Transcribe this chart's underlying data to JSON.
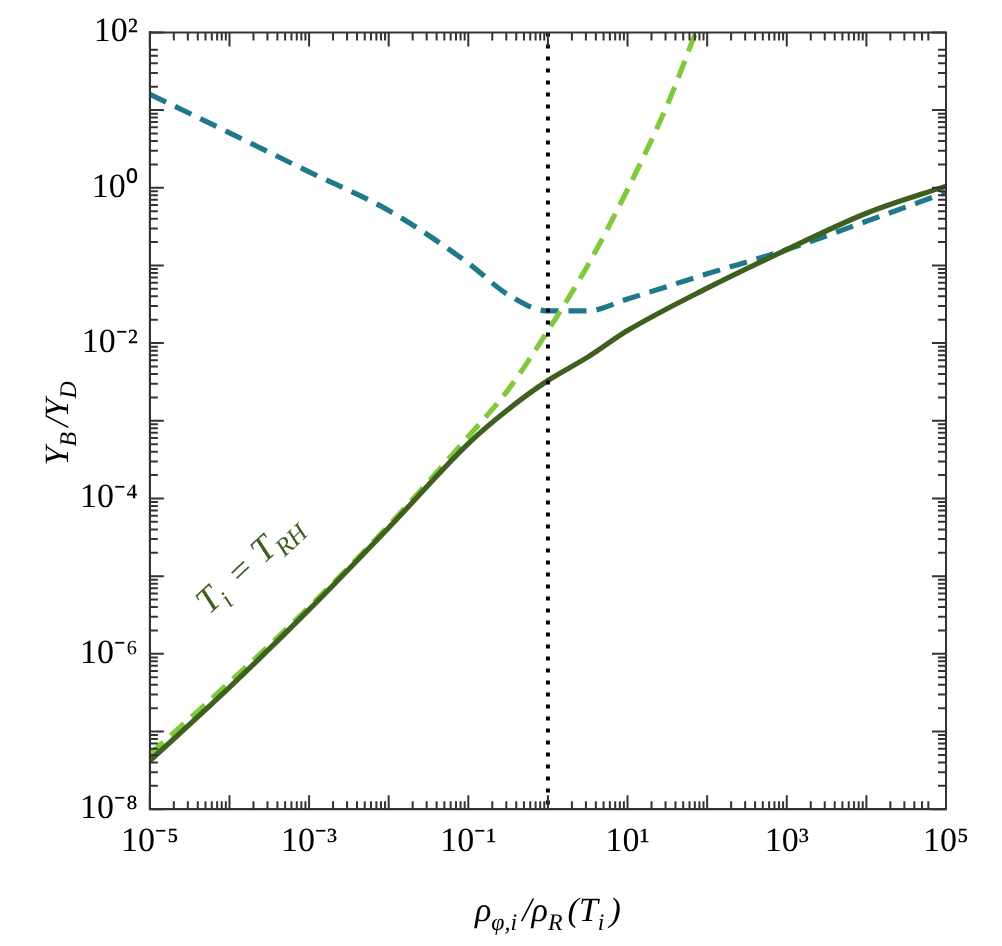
{
  "chart_data": {
    "type": "line",
    "xlabel": "ρ$_{φ,i}$/ρ$_{R}$(T$_{i}$)",
    "ylabel": "Y$_{B}$/Y$_{D}$",
    "log": "xy",
    "grid": false,
    "legend": false,
    "marker": "none",
    "xlim": [
      1e-05,
      100000
    ],
    "ylim": [
      1e-08,
      100
    ],
    "xticks": [
      {
        "value": 1e-05,
        "label": "10⁻⁵"
      },
      {
        "value": 0.0001,
        "label": null
      },
      {
        "value": 0.001,
        "label": "10⁻³"
      },
      {
        "value": 0.01,
        "label": null
      },
      {
        "value": 0.1,
        "label": "10⁻¹"
      },
      {
        "value": 1,
        "label": null
      },
      {
        "value": 10,
        "label": "10¹"
      },
      {
        "value": 100,
        "label": null
      },
      {
        "value": 1000,
        "label": "10³"
      },
      {
        "value": 10000,
        "label": null
      },
      {
        "value": 100000,
        "label": "10⁵"
      }
    ],
    "yticks": [
      {
        "value": 1e-08,
        "label": "10⁻⁸"
      },
      {
        "value": 1e-07,
        "label": null
      },
      {
        "value": 1e-06,
        "label": "10⁻⁶"
      },
      {
        "value": 1e-05,
        "label": null
      },
      {
        "value": 0.0001,
        "label": "10⁻⁴"
      },
      {
        "value": 0.001,
        "label": null
      },
      {
        "value": 0.01,
        "label": "10⁻²"
      },
      {
        "value": 0.1,
        "label": null
      },
      {
        "value": 1,
        "label": "10⁰"
      },
      {
        "value": 10,
        "label": null
      },
      {
        "value": 100,
        "label": "10²"
      }
    ],
    "series": [
      {
        "color": "#3f5f1f",
        "line_style": "solid",
        "x": [
          1e-05,
          0.0001,
          0.001,
          0.01,
          0.1,
          0.316,
          1,
          3.16,
          10,
          100,
          1000,
          10000,
          100000
        ],
        "values": [
          4.2e-08,
          3.7e-07,
          3.7e-06,
          4.2e-05,
          0.00051,
          0.0014,
          0.0033,
          0.0066,
          0.0145,
          0.051,
          0.16,
          0.47,
          1.05
        ]
      },
      {
        "color": "#7fc93b",
        "line_style": "dashed",
        "x": [
          1e-05,
          0.0001,
          0.001,
          0.01,
          0.1,
          0.316,
          1,
          3.16,
          10,
          31.6,
          72
        ],
        "values": [
          5.1e-08,
          4.3e-07,
          4e-06,
          4.5e-05,
          0.00063,
          0.0025,
          0.0145,
          0.1,
          0.95,
          11.7,
          100
        ]
      },
      {
        "color": "#21788a",
        "line_style": "dashed",
        "x": [
          1e-05,
          0.0001,
          0.001,
          0.01,
          0.1,
          0.316,
          1,
          3.16,
          10,
          100,
          1000,
          10000,
          100000
        ],
        "values": [
          16,
          5.1,
          1.6,
          0.51,
          0.107,
          0.042,
          0.026,
          0.026,
          0.037,
          0.078,
          0.16,
          0.37,
          0.87
        ]
      }
    ],
    "ref_lines": [
      {
        "axis": "x",
        "value": 1,
        "color": "#000000",
        "line_style": "dotted"
      }
    ],
    "annotations": [
      "T$_{i}$ = T$_{RH}$"
    ]
  }
}
